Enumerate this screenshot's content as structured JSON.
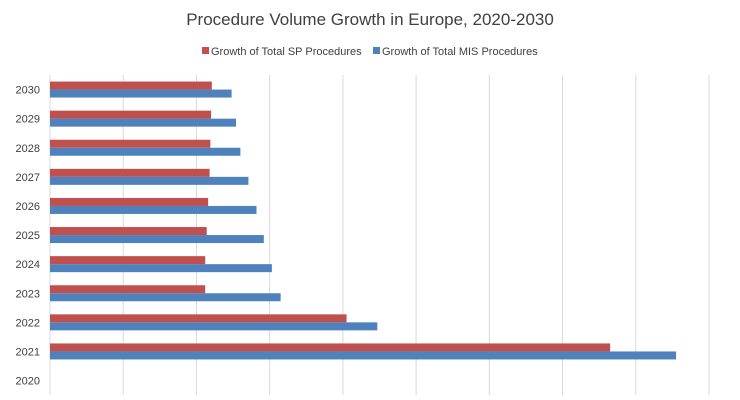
{
  "chart_data": {
    "type": "bar",
    "orientation": "horizontal",
    "title": "Procedure Volume Growth in Europe, 2020-2030",
    "xlabel": "",
    "ylabel": "",
    "categories": [
      "2020",
      "2021",
      "2022",
      "2023",
      "2024",
      "2025",
      "2026",
      "2027",
      "2028",
      "2029",
      "2030"
    ],
    "series": [
      {
        "name": "Growth of Total SP Procedures",
        "color": "#C0504D",
        "values": [
          0,
          7.65,
          4.05,
          2.12,
          2.12,
          2.14,
          2.16,
          2.18,
          2.19,
          2.2,
          2.21
        ]
      },
      {
        "name": "Growth of Total MIS Procedures",
        "color": "#4F81BD",
        "values": [
          0,
          8.55,
          4.47,
          3.15,
          3.03,
          2.92,
          2.82,
          2.71,
          2.6,
          2.54,
          2.48
        ]
      }
    ],
    "xlim": [
      0,
      9
    ],
    "x_gridlines": [
      0,
      1,
      2,
      3,
      4,
      5,
      6,
      7,
      8,
      9
    ],
    "x_tick_labels_visible": false,
    "grid": "vertical",
    "gridline_color": "#D9D9D9",
    "legend_position": "top"
  }
}
